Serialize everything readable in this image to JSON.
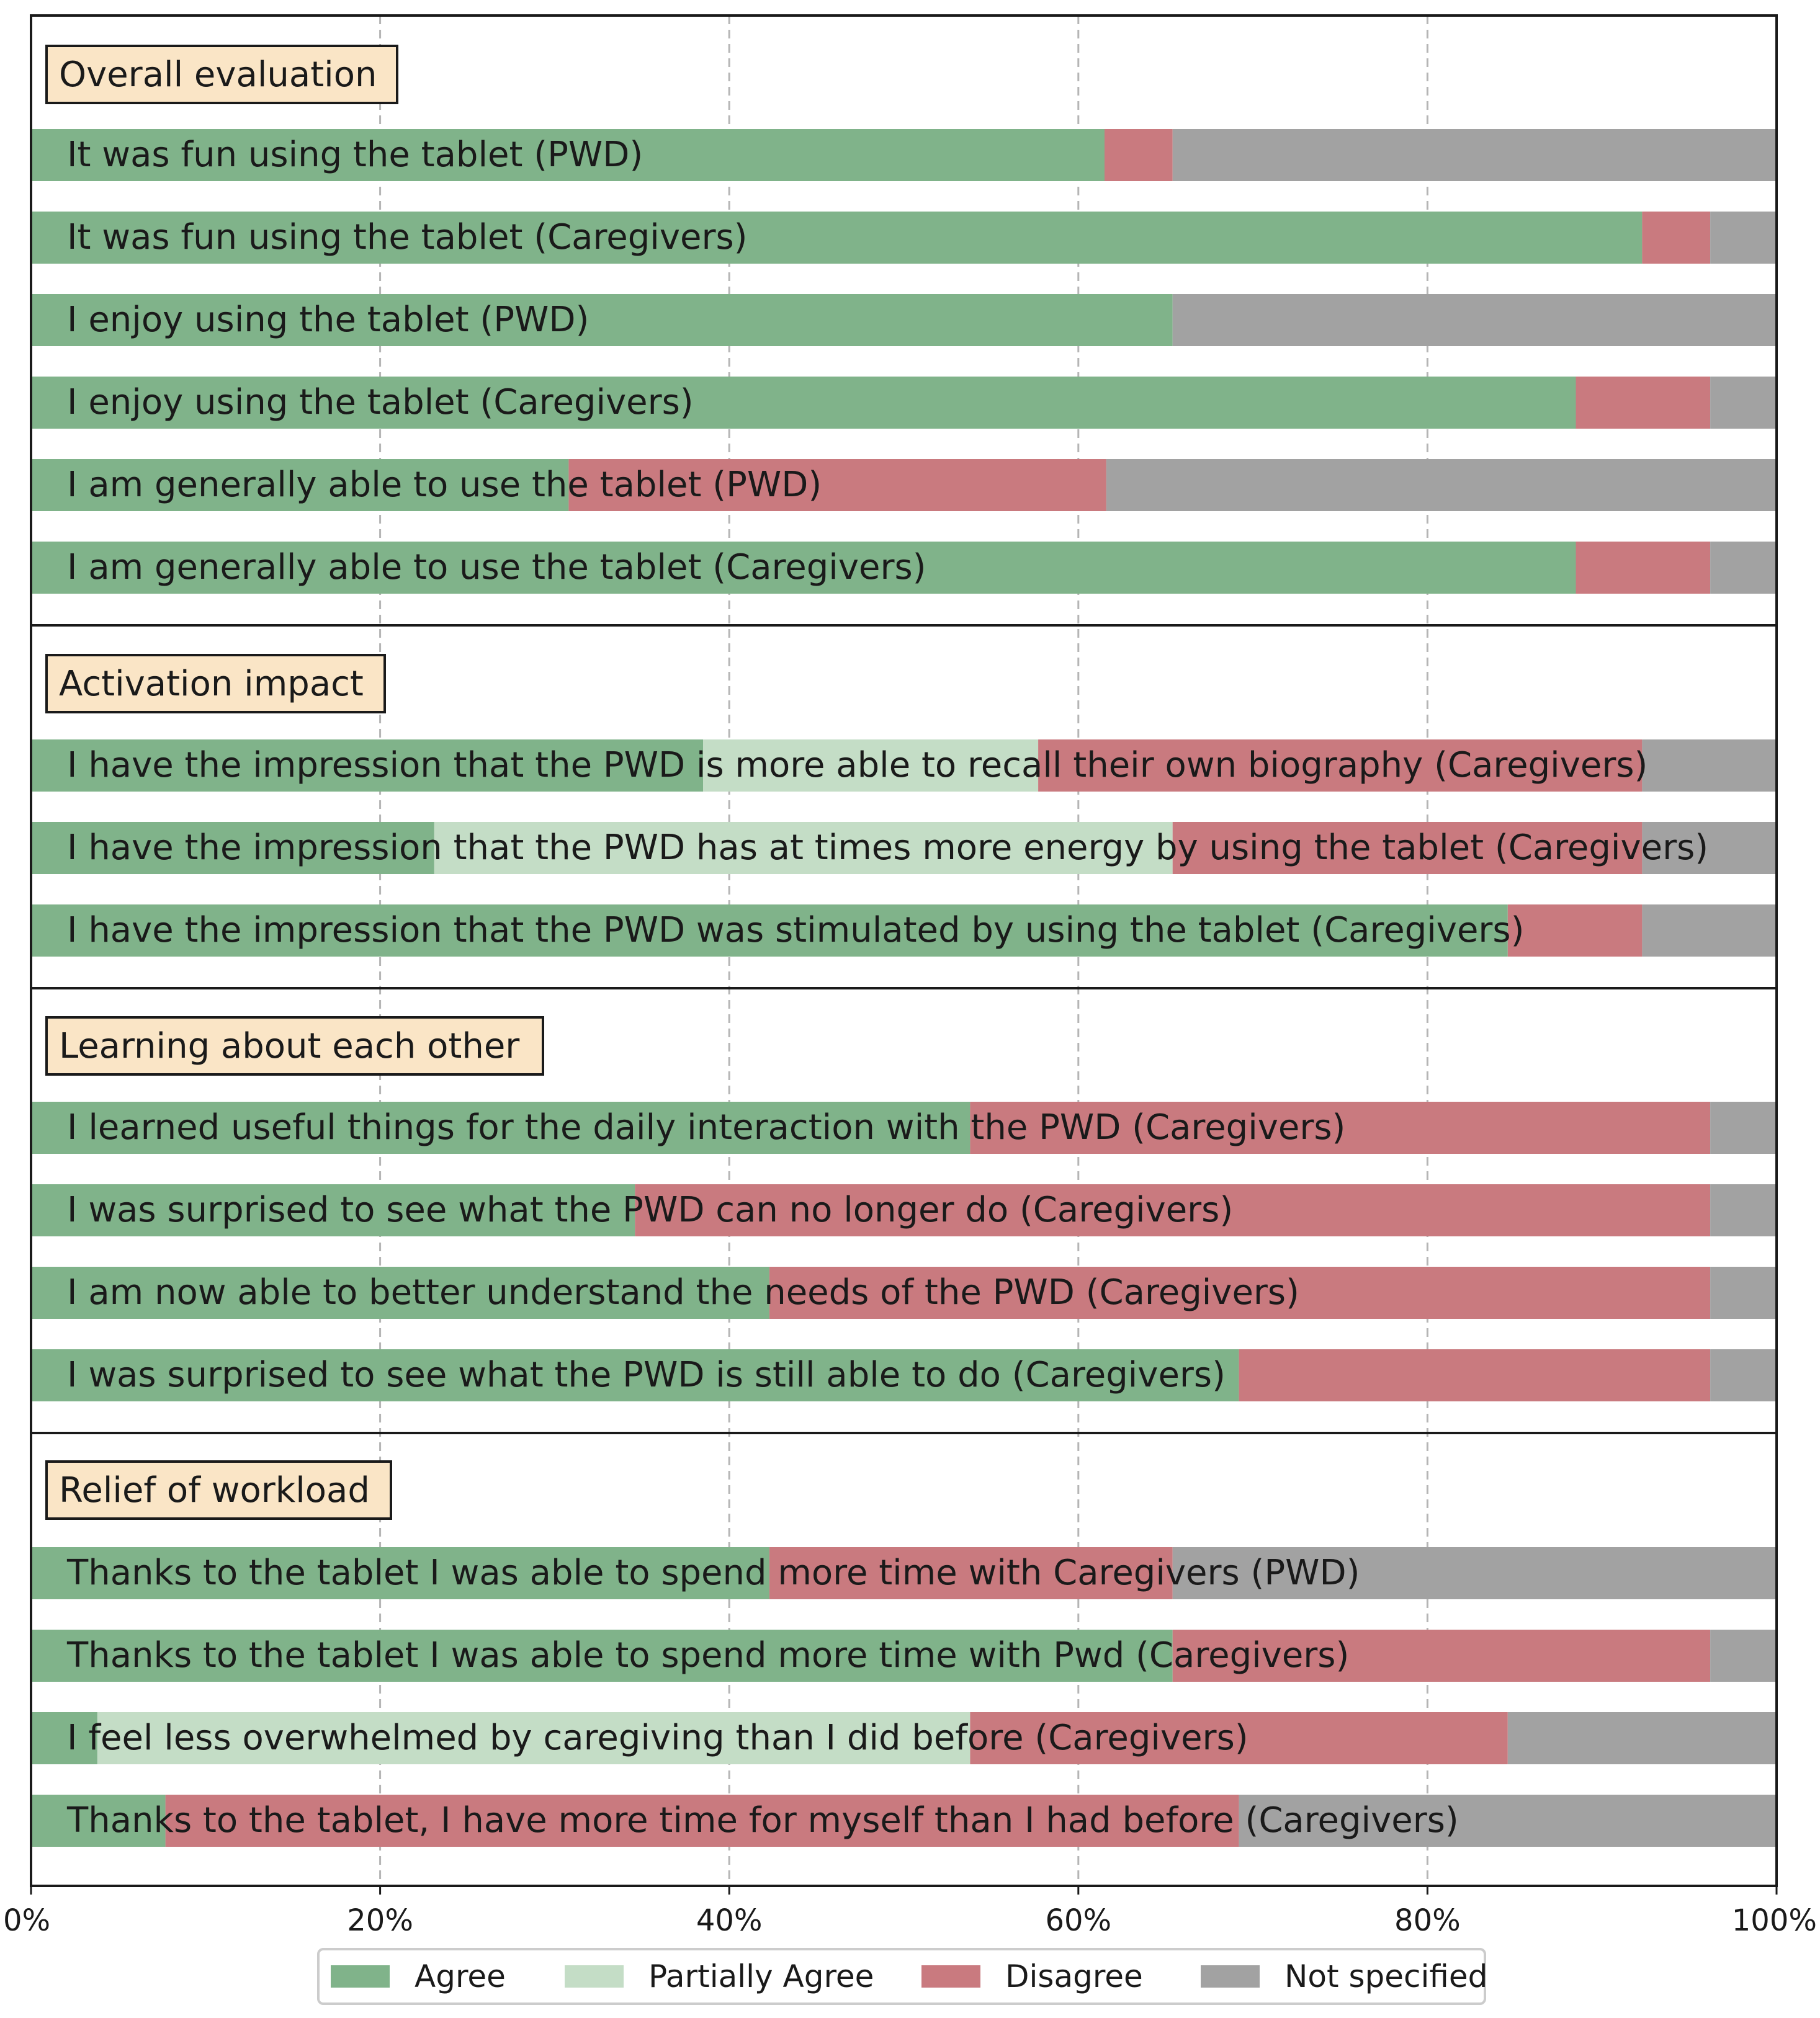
{
  "chart_data": {
    "type": "bar",
    "orientation": "horizontal",
    "stacked": true,
    "xlim": [
      0,
      100
    ],
    "x_ticks": [
      "0%",
      "20%",
      "40%",
      "60%",
      "80%",
      "100%"
    ],
    "grid": "vertical dashed",
    "legend_position": "bottom-center",
    "colors": {
      "Agree": "#80b38a",
      "Partially Agree": "#c4ddc6",
      "Disagree": "#c97a7f",
      "Not specified": "#a2a2a2",
      "section_box": "#fae5c6"
    },
    "series_names": [
      "Agree",
      "Partially Agree",
      "Disagree",
      "Not specified"
    ],
    "sections": [
      {
        "title": "Overall evaluation",
        "items": [
          {
            "label": "It was fun using the tablet (PWD)",
            "values": [
              61.5,
              0,
              3.9,
              34.6
            ]
          },
          {
            "label": "It was fun using the tablet (Caregivers)",
            "values": [
              92.3,
              0,
              3.9,
              3.8
            ]
          },
          {
            "label": "I enjoy using the tablet (PWD)",
            "values": [
              65.4,
              0,
              0,
              34.6
            ]
          },
          {
            "label": "I enjoy using the tablet (Caregivers)",
            "values": [
              88.5,
              0,
              7.7,
              3.8
            ]
          },
          {
            "label": "I am generally able to use the tablet (PWD)",
            "values": [
              30.8,
              0,
              30.8,
              38.4
            ]
          },
          {
            "label": "I am generally able to use the tablet (Caregivers)",
            "values": [
              88.5,
              0,
              7.7,
              3.8
            ]
          }
        ]
      },
      {
        "title": "Activation impact",
        "items": [
          {
            "label": "I have the impression that the PWD is more able to recall their own biography (Caregivers)",
            "values": [
              38.5,
              19.2,
              34.6,
              7.7
            ]
          },
          {
            "label": "I have the impression that the PWD has at times more energy by using the tablet (Caregivers)",
            "values": [
              23.1,
              42.3,
              26.9,
              7.7
            ]
          },
          {
            "label": "I have the impression that the PWD was stimulated by using the tablet (Caregivers)",
            "values": [
              84.6,
              0,
              7.7,
              7.7
            ]
          }
        ]
      },
      {
        "title": "Learning about each other",
        "items": [
          {
            "label": "I learned useful things for the daily interaction with the PWD (Caregivers)",
            "values": [
              53.8,
              0,
              42.4,
              3.8
            ]
          },
          {
            "label": "I was surprised to see what the PWD can no longer do (Caregivers)",
            "values": [
              34.6,
              0,
              61.6,
              3.8
            ]
          },
          {
            "label": "I am now able to better understand the needs of the PWD (Caregivers)",
            "values": [
              42.3,
              0,
              53.9,
              3.8
            ]
          },
          {
            "label": "I was surprised to see what the PWD is still able to do (Caregivers)",
            "values": [
              69.2,
              0,
              27.0,
              3.8
            ]
          }
        ]
      },
      {
        "title": "Relief of workload",
        "items": [
          {
            "label": "Thanks to the tablet I was able to spend more time with Caregivers (PWD)",
            "values": [
              42.3,
              0,
              23.1,
              34.6
            ]
          },
          {
            "label": "Thanks to the tablet I was able to spend more time with Pwd (Caregivers)",
            "values": [
              65.4,
              0,
              30.8,
              3.8
            ]
          },
          {
            "label": "I feel less overwhelmed by caregiving than I did before (Caregivers)",
            "values": [
              3.8,
              50.0,
              30.8,
              15.4
            ]
          },
          {
            "label": "Thanks to the tablet, I have more time for myself than I had before (Caregivers)",
            "values": [
              7.7,
              0,
              61.5,
              30.8
            ]
          }
        ]
      }
    ]
  }
}
